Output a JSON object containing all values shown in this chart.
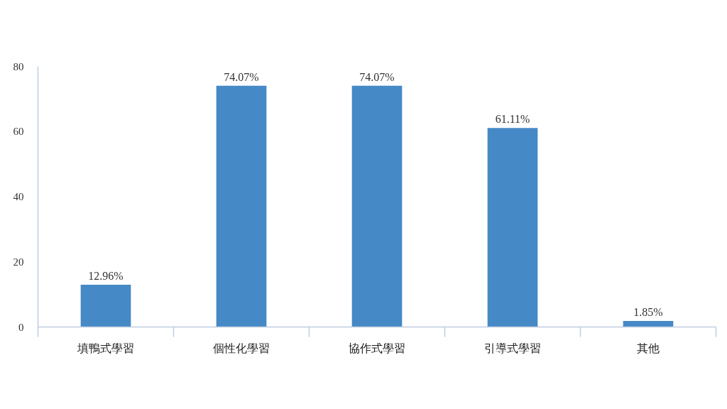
{
  "chart_data": {
    "type": "bar",
    "categories": [
      "填鴨式學習",
      "個性化學習",
      "協作式學習",
      "引導式學習",
      "其他"
    ],
    "values": [
      12.96,
      74.07,
      74.07,
      61.11,
      1.85
    ],
    "value_labels": [
      "12.96%",
      "74.07%",
      "74.07%",
      "61.11%",
      "1.85%"
    ],
    "color": "#4589c6",
    "ylim": [
      0,
      80
    ],
    "yticks": [
      0,
      20,
      40,
      60,
      80
    ]
  }
}
